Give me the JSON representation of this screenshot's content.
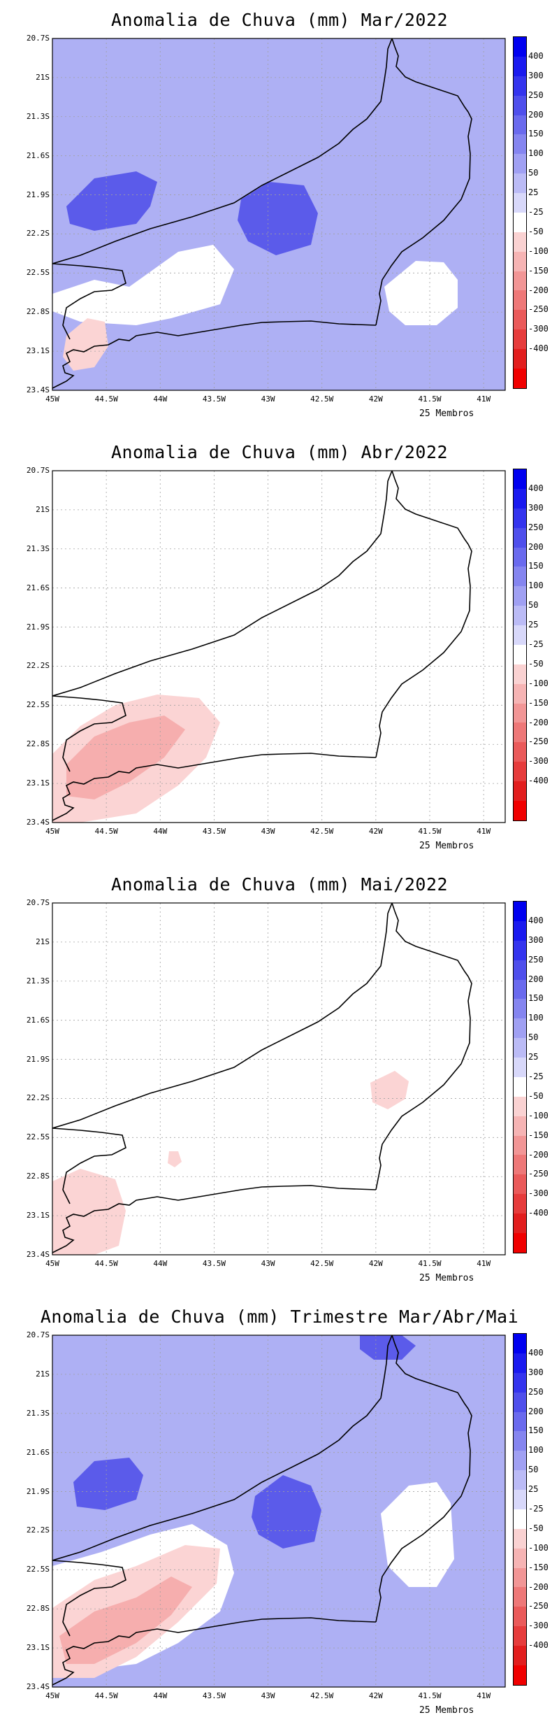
{
  "units": "25 Membros",
  "colors": {
    "pos4": "#5b5bea",
    "pos3": "#8a8aee",
    "pos2": "#aeb0f4",
    "pos1": "#d2d4fa",
    "zero": "#ffffff",
    "neg1": "#fbd4d4",
    "neg2": "#f6aeae",
    "neg3": "#f08a8a"
  },
  "colorbar": {
    "labels": [
      "400",
      "300",
      "250",
      "200",
      "150",
      "100",
      "50",
      "25",
      "-25",
      "-50",
      "-100",
      "-150",
      "-200",
      "-250",
      "-300",
      "-400"
    ],
    "colors": [
      "#0000f0",
      "#1a1aef",
      "#3434ee",
      "#4f4fec",
      "#6a6aee",
      "#8585f0",
      "#a0a0f3",
      "#bbbbf6",
      "#d8d8fa",
      "#ffffff",
      "#fad2d2",
      "#f6b4b4",
      "#f29696",
      "#ee7878",
      "#ea5a5a",
      "#e63c3c",
      "#e21e1e",
      "#f00000"
    ]
  },
  "axes": {
    "lat_labels": [
      "20.7S",
      "21S",
      "21.3S",
      "21.6S",
      "21.9S",
      "22.2S",
      "22.5S",
      "22.8S",
      "23.1S",
      "23.4S"
    ],
    "lon_labels": [
      "45W",
      "44.5W",
      "44W",
      "43.5W",
      "43W",
      "42.5W",
      "42W",
      "41.5W",
      "41W"
    ]
  },
  "panels": [
    {
      "title": "Anomalia de Chuva (mm) Mar/2022",
      "regions": [
        {
          "level": "pos4",
          "shape": "blob1"
        },
        {
          "level": "pos4",
          "shape": "blob2"
        },
        {
          "level": "zero",
          "shape": "whiteS"
        },
        {
          "level": "zero",
          "shape": "whiteE"
        },
        {
          "level": "neg1",
          "shape": "redSW"
        }
      ],
      "background": "pos2"
    },
    {
      "title": "Anomalia de Chuva (mm) Abr/2022",
      "regions": [
        {
          "level": "neg1",
          "shape": "aprA"
        },
        {
          "level": "neg2",
          "shape": "aprB"
        }
      ],
      "background": "zero"
    },
    {
      "title": "Anomalia de Chuva (mm) Mai/2022",
      "regions": [
        {
          "level": "neg1",
          "shape": "mayA"
        },
        {
          "level": "neg1",
          "shape": "mayB"
        },
        {
          "level": "neg1",
          "shape": "mayC"
        }
      ],
      "background": "zero"
    },
    {
      "title": "Anomalia de Chuva (mm) Trimestre Mar/Abr/Mai",
      "regions": [
        {
          "level": "pos4",
          "shape": "tblob1"
        },
        {
          "level": "pos4",
          "shape": "tblob2"
        },
        {
          "level": "pos4",
          "shape": "tblob3"
        },
        {
          "level": "zero",
          "shape": "twhiteS"
        },
        {
          "level": "zero",
          "shape": "twhiteE"
        },
        {
          "level": "neg1",
          "shape": "tredA"
        },
        {
          "level": "neg2",
          "shape": "tredB"
        }
      ],
      "background": "pos2"
    }
  ]
}
